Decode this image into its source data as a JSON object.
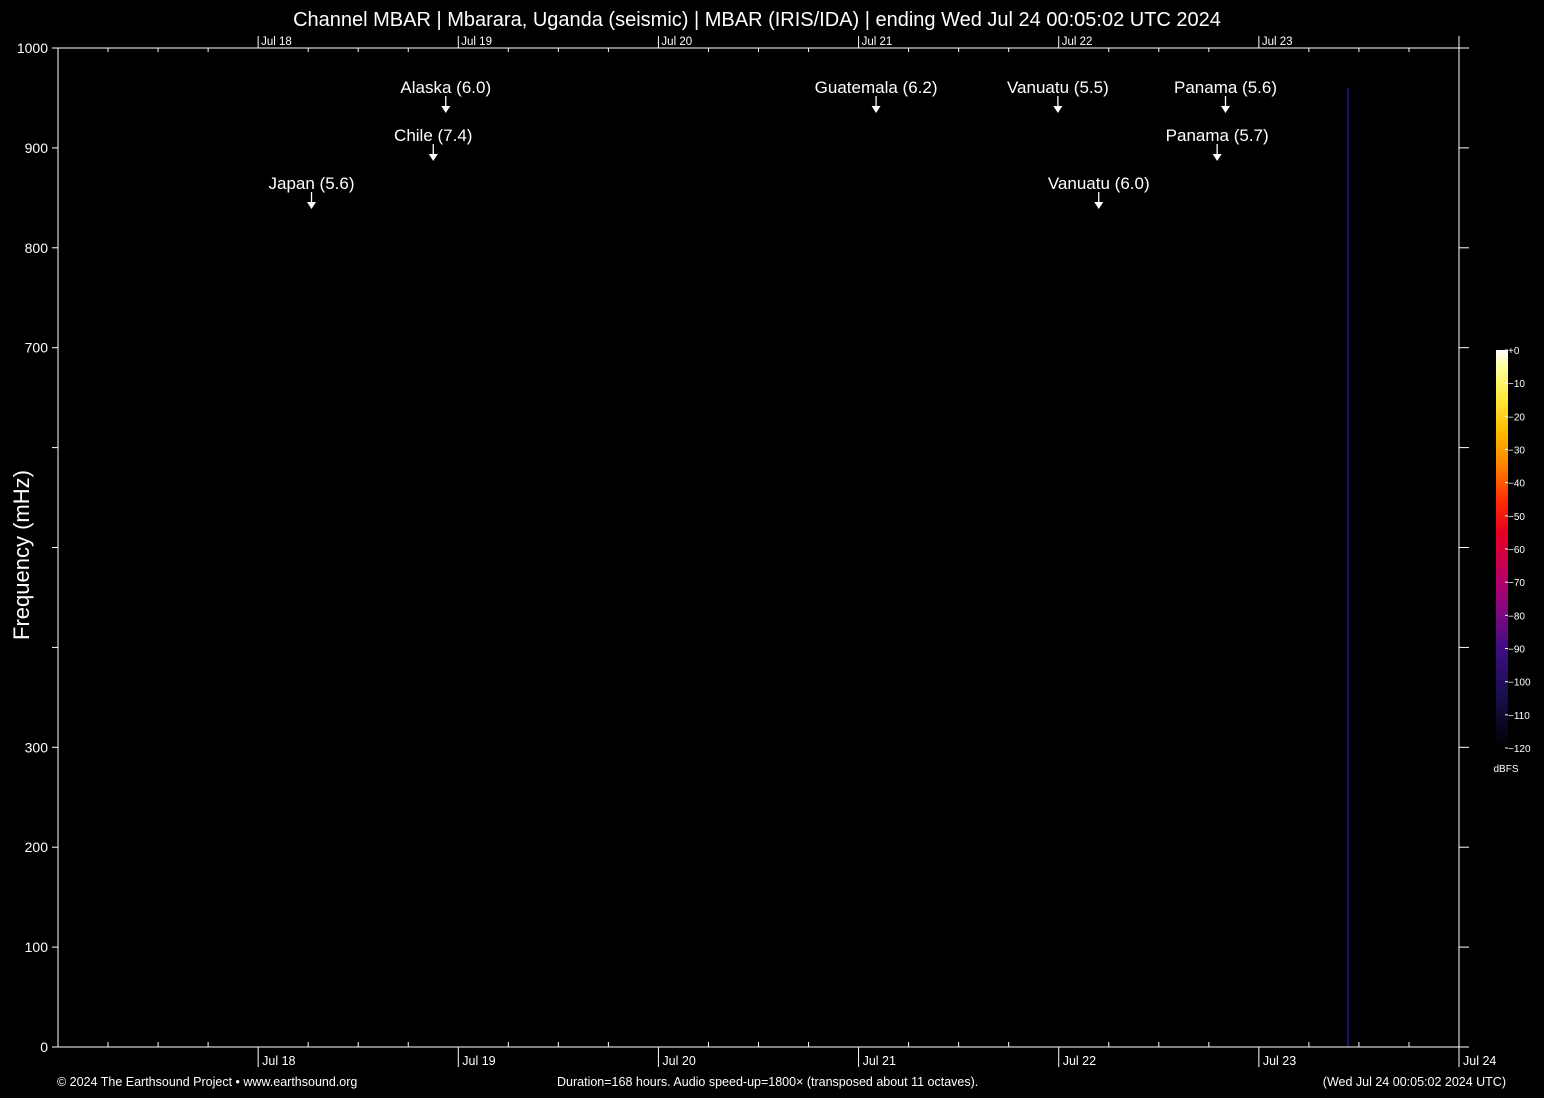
{
  "chart_data": {
    "type": "heatmap",
    "title": "Channel MBAR | Mbarara, Uganda (seismic) | MBAR (IRIS/IDA) | ending Wed Jul 24 00:05:02 UTC 2024",
    "ylabel": "Frequency (mHz)",
    "ylim": [
      0,
      1000
    ],
    "y_ticks": [
      {
        "value": 0,
        "label": "0"
      },
      {
        "value": 100,
        "label": "100"
      },
      {
        "value": 200,
        "label": "200"
      },
      {
        "value": 300,
        "label": "300"
      },
      {
        "value": 400,
        "label": ""
      },
      {
        "value": 500,
        "label": ""
      },
      {
        "value": 600,
        "label": ""
      },
      {
        "value": 700,
        "label": "700"
      },
      {
        "value": 800,
        "label": "800"
      },
      {
        "value": 900,
        "label": "900"
      },
      {
        "value": 1000,
        "label": "1000"
      }
    ],
    "x_unit": "hours",
    "x_range_hours": [
      -168,
      0
    ],
    "x_ticks": [
      {
        "hours_before_end": 144,
        "label": "Jul 18"
      },
      {
        "hours_before_end": 120,
        "label": "Jul 19"
      },
      {
        "hours_before_end": 96,
        "label": "Jul 20"
      },
      {
        "hours_before_end": 72,
        "label": "Jul 21"
      },
      {
        "hours_before_end": 48,
        "label": "Jul 22"
      },
      {
        "hours_before_end": 24,
        "label": "Jul 23"
      },
      {
        "hours_before_end": 0,
        "label": "Jul 24"
      }
    ],
    "events": [
      {
        "label": "Alaska (6.0)",
        "hours_before_end": 121.5,
        "row": 0
      },
      {
        "label": "Chile (7.4)",
        "hours_before_end": 123.0,
        "row": 1
      },
      {
        "label": "Japan (5.6)",
        "hours_before_end": 137.6,
        "row": 2
      },
      {
        "label": "Guatemala (6.2)",
        "hours_before_end": 69.9,
        "row": 0
      },
      {
        "label": "Vanuatu (5.5)",
        "hours_before_end": 48.1,
        "row": 0
      },
      {
        "label": "Panama (5.6)",
        "hours_before_end": 28.0,
        "row": 0
      },
      {
        "label": "Panama (5.7)",
        "hours_before_end": 29.0,
        "row": 1
      },
      {
        "label": "Vanuatu (6.0)",
        "hours_before_end": 43.2,
        "row": 2
      }
    ],
    "spectrogram_features": [
      {
        "hours_before_end": 13.3,
        "freq_range": [
          0,
          960
        ],
        "level_dbfs": -105,
        "color": "#1a1a9a"
      }
    ],
    "colorbar": {
      "unit": "dBFS",
      "range": [
        -120,
        0
      ],
      "ticks": [
        {
          "value": 0,
          "label": "+0"
        },
        {
          "value": -10,
          "label": "−10"
        },
        {
          "value": -20,
          "label": "−20"
        },
        {
          "value": -30,
          "label": "−30"
        },
        {
          "value": -40,
          "label": "−40"
        },
        {
          "value": -50,
          "label": "−50"
        },
        {
          "value": -60,
          "label": "−60"
        },
        {
          "value": -70,
          "label": "−70"
        },
        {
          "value": -80,
          "label": "−80"
        },
        {
          "value": -90,
          "label": "−90"
        },
        {
          "value": -100,
          "label": "−100"
        },
        {
          "value": -110,
          "label": "−110"
        },
        {
          "value": -120,
          "label": "−120"
        }
      ],
      "stops": [
        {
          "value": -120,
          "color": "#000000"
        },
        {
          "value": -105,
          "color": "#15104a"
        },
        {
          "value": -90,
          "color": "#3e0d84"
        },
        {
          "value": -80,
          "color": "#7a0a80"
        },
        {
          "value": -70,
          "color": "#b3006a"
        },
        {
          "value": -55,
          "color": "#e60020"
        },
        {
          "value": -45,
          "color": "#ff3000"
        },
        {
          "value": -35,
          "color": "#ff8000"
        },
        {
          "value": -25,
          "color": "#ffb800"
        },
        {
          "value": -15,
          "color": "#ffe838"
        },
        {
          "value": -5,
          "color": "#ffff9e"
        },
        {
          "value": 0,
          "color": "#ffffff"
        }
      ]
    },
    "grid": false
  },
  "footer": {
    "left": "© 2024 The Earthsound Project • www.earthsound.org",
    "center": "Duration=168 hours. Audio speed-up=1800× (transposed about 11 octaves).",
    "right": "(Wed Jul 24 00:05:02 2024 UTC)"
  }
}
